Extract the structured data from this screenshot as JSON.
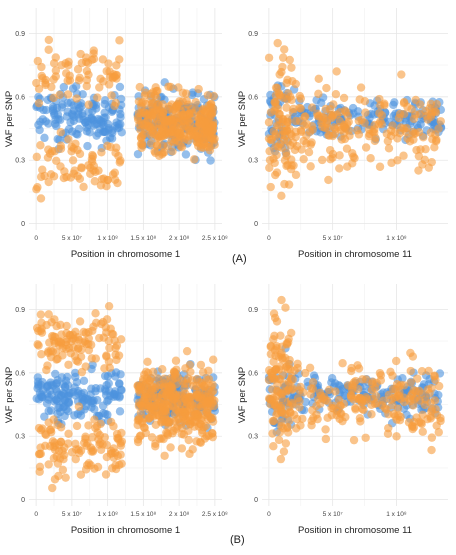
{
  "figure": {
    "panel_labels": [
      "(A)",
      "(B)"
    ],
    "colors": {
      "series_1": "#4c93dd",
      "series_2": "#f79c3d",
      "grid": "#e6e6e6",
      "axis_text": "#444444"
    }
  },
  "chart_data": [
    {
      "type": "scatter",
      "panel": "(A)",
      "xlabel": "Position in chromosome 1",
      "ylabel": "VAF per SNP",
      "xlim": [
        0,
        250000000
      ],
      "ylim": [
        0,
        1
      ],
      "x_ticks": [
        0,
        50000000,
        100000000,
        150000000,
        200000000,
        250000000
      ],
      "x_tick_labels": [
        "0",
        "5 x 10⁷",
        "1 x 10⁸",
        "1.5 x 10⁸",
        "2 x 10⁸",
        "2.5 x 10⁸"
      ],
      "y_ticks": [
        0,
        0.3,
        0.6,
        0.9
      ],
      "y_tick_labels": [
        "0",
        "0.3",
        "0.6",
        "0.9"
      ],
      "grid": true,
      "clusters": [
        {
          "x_start": 0,
          "x_end": 120000000,
          "mean": 0.5,
          "spread": 0.09,
          "n": 140,
          "series": 0
        },
        {
          "x_start": 0,
          "x_end": 120000000,
          "mean": 0.72,
          "spread": 0.1,
          "n": 70,
          "series": 1
        },
        {
          "x_start": 0,
          "x_end": 120000000,
          "mean": 0.28,
          "spread": 0.1,
          "n": 70,
          "series": 1
        },
        {
          "x_start": 142000000,
          "x_end": 250000000,
          "mean": 0.48,
          "spread": 0.1,
          "n": 180,
          "series": 0
        },
        {
          "x_start": 142000000,
          "x_end": 250000000,
          "mean": 0.47,
          "spread": 0.1,
          "n": 300,
          "series": 1
        }
      ]
    },
    {
      "type": "scatter",
      "panel": "(A)",
      "xlabel": "Position in chromosome 11",
      "ylabel": "VAF per SNP",
      "xlim": [
        0,
        135000000
      ],
      "ylim": [
        0,
        1
      ],
      "x_ticks": [
        0,
        50000000,
        100000000
      ],
      "x_tick_labels": [
        "0",
        "5 x 10⁷",
        "1 x 10⁸"
      ],
      "y_ticks": [
        0,
        0.3,
        0.6,
        0.9
      ],
      "y_tick_labels": [
        "0",
        "0.3",
        "0.6",
        "0.9"
      ],
      "grid": true,
      "clusters": [
        {
          "x_start": 0,
          "x_end": 20000000,
          "mean": 0.5,
          "spread": 0.12,
          "n": 40,
          "series": 0
        },
        {
          "x_start": 0,
          "x_end": 20000000,
          "mean": 0.5,
          "spread": 0.22,
          "n": 90,
          "series": 1
        },
        {
          "x_start": 20000000,
          "x_end": 135000000,
          "mean": 0.5,
          "spread": 0.07,
          "n": 150,
          "series": 0
        },
        {
          "x_start": 20000000,
          "x_end": 135000000,
          "mean": 0.45,
          "spread": 0.13,
          "n": 190,
          "series": 1
        }
      ]
    },
    {
      "type": "scatter",
      "panel": "(B)",
      "xlabel": "Position in chromosome 1",
      "ylabel": "VAF per SNP",
      "xlim": [
        0,
        250000000
      ],
      "ylim": [
        0,
        1
      ],
      "x_ticks": [
        0,
        50000000,
        100000000,
        150000000,
        200000000,
        250000000
      ],
      "x_tick_labels": [
        "0",
        "5 x 10⁷",
        "1 x 10⁸",
        "1.5 x 10⁸",
        "2 x 10⁸",
        "2.5 x 10⁸"
      ],
      "y_ticks": [
        0,
        0.3,
        0.6,
        0.9
      ],
      "y_tick_labels": [
        "0",
        "0.3",
        "0.6",
        "0.9"
      ],
      "grid": true,
      "clusters": [
        {
          "x_start": 0,
          "x_end": 120000000,
          "mean": 0.5,
          "spread": 0.08,
          "n": 150,
          "series": 0
        },
        {
          "x_start": 0,
          "x_end": 120000000,
          "mean": 0.74,
          "spread": 0.1,
          "n": 110,
          "series": 1
        },
        {
          "x_start": 0,
          "x_end": 120000000,
          "mean": 0.24,
          "spread": 0.1,
          "n": 110,
          "series": 1
        },
        {
          "x_start": 142000000,
          "x_end": 250000000,
          "mean": 0.48,
          "spread": 0.08,
          "n": 170,
          "series": 0
        },
        {
          "x_start": 142000000,
          "x_end": 250000000,
          "mean": 0.45,
          "spread": 0.13,
          "n": 330,
          "series": 1
        }
      ]
    },
    {
      "type": "scatter",
      "panel": "(B)",
      "xlabel": "Position in chromosome 11",
      "ylabel": "VAF per SNP",
      "xlim": [
        0,
        135000000
      ],
      "ylim": [
        0,
        1
      ],
      "x_ticks": [
        0,
        50000000,
        100000000
      ],
      "x_tick_labels": [
        "0",
        "5 x 10⁷",
        "1 x 10⁸"
      ],
      "y_ticks": [
        0,
        0.3,
        0.6,
        0.9
      ],
      "y_tick_labels": [
        "0",
        "0.3",
        "0.6",
        "0.9"
      ],
      "grid": true,
      "clusters": [
        {
          "x_start": 0,
          "x_end": 18000000,
          "mean": 0.5,
          "spread": 0.12,
          "n": 40,
          "series": 0
        },
        {
          "x_start": 0,
          "x_end": 18000000,
          "mean": 0.55,
          "spread": 0.22,
          "n": 110,
          "series": 1
        },
        {
          "x_start": 18000000,
          "x_end": 135000000,
          "mean": 0.5,
          "spread": 0.07,
          "n": 160,
          "series": 0
        },
        {
          "x_start": 18000000,
          "x_end": 135000000,
          "mean": 0.47,
          "spread": 0.11,
          "n": 200,
          "series": 1
        }
      ]
    }
  ]
}
